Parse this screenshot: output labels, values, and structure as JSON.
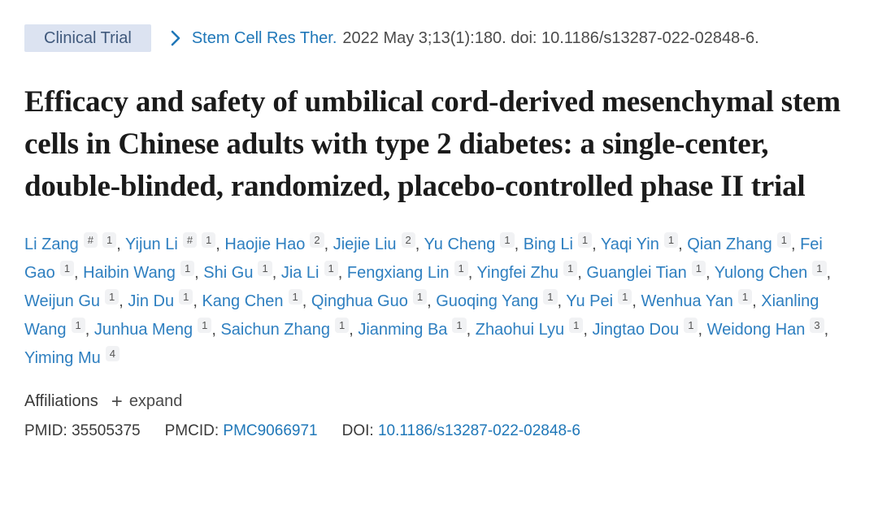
{
  "header": {
    "badge_label": "Clinical Trial",
    "journal_link": "Stem Cell Res Ther.",
    "citation_text": "2022 May 3;13(1):180. doi: 10.1186/s13287-022-02848-6."
  },
  "title": "Efficacy and safety of umbilical cord-derived mesenchymal stem cells in Chinese adults with type 2 diabetes: a single-center, double-blinded, randomized, placebo-controlled phase II trial",
  "authors": {
    "list": [
      {
        "name": "Li Zang",
        "sups": [
          "#",
          "1"
        ]
      },
      {
        "name": "Yijun Li",
        "sups": [
          "#",
          "1"
        ]
      },
      {
        "name": "Haojie Hao",
        "sups": [
          "2"
        ]
      },
      {
        "name": "Jiejie Liu",
        "sups": [
          "2"
        ]
      },
      {
        "name": "Yu Cheng",
        "sups": [
          "1"
        ]
      },
      {
        "name": "Bing Li",
        "sups": [
          "1"
        ]
      },
      {
        "name": "Yaqi Yin",
        "sups": [
          "1"
        ]
      },
      {
        "name": "Qian Zhang",
        "sups": [
          "1"
        ]
      },
      {
        "name": "Fei Gao",
        "sups": [
          "1"
        ]
      },
      {
        "name": "Haibin Wang",
        "sups": [
          "1"
        ]
      },
      {
        "name": "Shi Gu",
        "sups": [
          "1"
        ]
      },
      {
        "name": "Jia Li",
        "sups": [
          "1"
        ]
      },
      {
        "name": "Fengxiang Lin",
        "sups": [
          "1"
        ]
      },
      {
        "name": "Yingfei Zhu",
        "sups": [
          "1"
        ]
      },
      {
        "name": "Guanglei Tian",
        "sups": [
          "1"
        ]
      },
      {
        "name": "Yulong Chen",
        "sups": [
          "1"
        ]
      },
      {
        "name": "Weijun Gu",
        "sups": [
          "1"
        ]
      },
      {
        "name": "Jin Du",
        "sups": [
          "1"
        ]
      },
      {
        "name": "Kang Chen",
        "sups": [
          "1"
        ]
      },
      {
        "name": "Qinghua Guo",
        "sups": [
          "1"
        ]
      },
      {
        "name": "Guoqing Yang",
        "sups": [
          "1"
        ]
      },
      {
        "name": "Yu Pei",
        "sups": [
          "1"
        ]
      },
      {
        "name": "Wenhua Yan",
        "sups": [
          "1"
        ]
      },
      {
        "name": "Xianling Wang",
        "sups": [
          "1"
        ]
      },
      {
        "name": "Junhua Meng",
        "sups": [
          "1"
        ]
      },
      {
        "name": "Saichun Zhang",
        "sups": [
          "1"
        ]
      },
      {
        "name": "Jianming Ba",
        "sups": [
          "1"
        ]
      },
      {
        "name": "Zhaohui Lyu",
        "sups": [
          "1"
        ]
      },
      {
        "name": "Jingtao Dou",
        "sups": [
          "1"
        ]
      },
      {
        "name": "Weidong Han",
        "sups": [
          "3"
        ]
      },
      {
        "name": "Yiming Mu",
        "sups": [
          "4"
        ]
      }
    ],
    "separator": ", "
  },
  "affiliations": {
    "label": "Affiliations",
    "plus_glyph": "+",
    "expand_label": "expand"
  },
  "identifiers": {
    "pmid_label": "PMID:",
    "pmid_value": "35505375",
    "pmcid_label": "PMCID:",
    "pmcid_value": "PMC9066971",
    "doi_label": "DOI:",
    "doi_value": "10.1186/s13287-022-02848-6"
  },
  "icons": {
    "chevron_right": "chevron-right",
    "plus": "plus"
  },
  "colors": {
    "link_blue": "#1f77b8",
    "author_link_blue": "#2e7fc0",
    "badge_background": "#dce3f1",
    "badge_text": "#40597c",
    "title_text": "#1b1b1b",
    "body_text": "#4a4a4a",
    "sup_background": "#f1f2f4",
    "page_background": "#ffffff"
  }
}
